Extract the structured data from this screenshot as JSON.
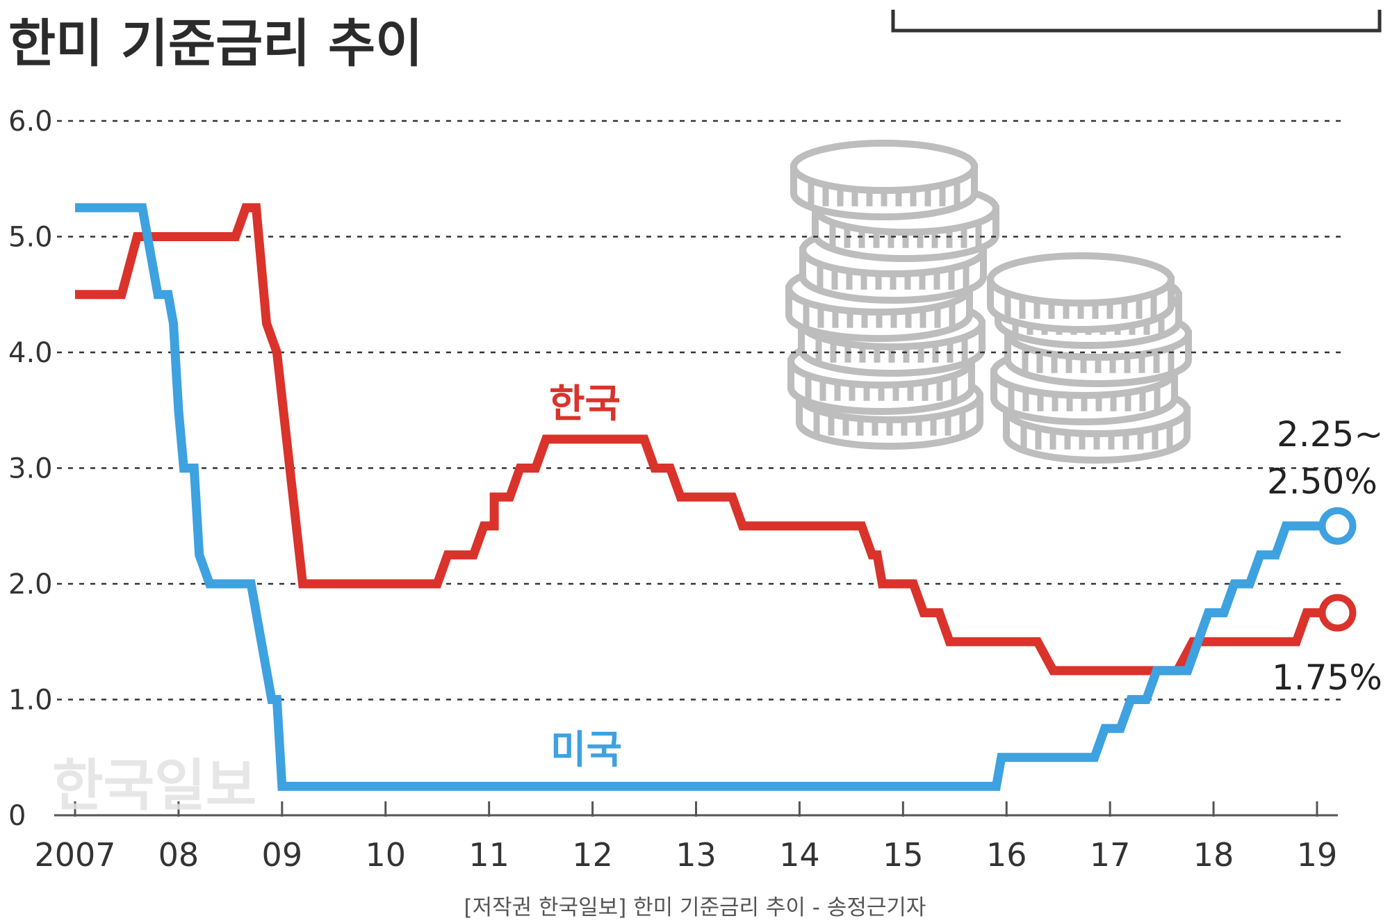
{
  "chart_data": {
    "type": "line",
    "title": "한미 기준금리 추이",
    "source": "[저작권 한국일보] 한미 기준금리 추이 - 송정근기자",
    "watermark": "한국일보",
    "x_tick_labels": [
      "2007",
      "08",
      "09",
      "10",
      "11",
      "12",
      "13",
      "14",
      "15",
      "16",
      "17",
      "18",
      "19"
    ],
    "y_tick_labels": [
      "0",
      "1.0",
      "2.0",
      "3.0",
      "4.0",
      "5.0",
      "6.0"
    ],
    "ylim": [
      0,
      6
    ],
    "xlim": [
      2007,
      2019
    ],
    "grid": true,
    "colors": {
      "korea": "#d9332b",
      "usa": "#3ea1e0",
      "coins": "#bdbdbd"
    },
    "series": [
      {
        "name": "한국",
        "key": "korea",
        "points": [
          [
            2007.0,
            4.5
          ],
          [
            2007.45,
            4.5
          ],
          [
            2007.6,
            5.0
          ],
          [
            2008.55,
            5.0
          ],
          [
            2008.65,
            5.25
          ],
          [
            2008.75,
            5.25
          ],
          [
            2008.85,
            4.25
          ],
          [
            2008.95,
            4.0
          ],
          [
            2009.2,
            2.0
          ],
          [
            2010.5,
            2.0
          ],
          [
            2010.6,
            2.25
          ],
          [
            2010.85,
            2.25
          ],
          [
            2010.95,
            2.5
          ],
          [
            2011.05,
            2.5
          ],
          [
            2011.05,
            2.75
          ],
          [
            2011.2,
            2.75
          ],
          [
            2011.3,
            3.0
          ],
          [
            2011.45,
            3.0
          ],
          [
            2011.55,
            3.25
          ],
          [
            2012.5,
            3.25
          ],
          [
            2012.6,
            3.0
          ],
          [
            2012.75,
            3.0
          ],
          [
            2012.85,
            2.75
          ],
          [
            2013.35,
            2.75
          ],
          [
            2013.45,
            2.5
          ],
          [
            2014.6,
            2.5
          ],
          [
            2014.7,
            2.25
          ],
          [
            2014.75,
            2.25
          ],
          [
            2014.8,
            2.0
          ],
          [
            2015.1,
            2.0
          ],
          [
            2015.2,
            1.75
          ],
          [
            2015.35,
            1.75
          ],
          [
            2015.45,
            1.5
          ],
          [
            2016.3,
            1.5
          ],
          [
            2016.45,
            1.25
          ],
          [
            2017.65,
            1.25
          ],
          [
            2017.8,
            1.5
          ],
          [
            2018.8,
            1.5
          ],
          [
            2018.9,
            1.75
          ],
          [
            2019.05,
            1.75
          ]
        ],
        "end_label": "1.75%"
      },
      {
        "name": "미국",
        "key": "usa",
        "points": [
          [
            2007.0,
            5.25
          ],
          [
            2007.65,
            5.25
          ],
          [
            2007.75,
            4.75
          ],
          [
            2007.8,
            4.5
          ],
          [
            2007.9,
            4.5
          ],
          [
            2007.95,
            4.25
          ],
          [
            2008.0,
            3.5
          ],
          [
            2008.05,
            3.0
          ],
          [
            2008.15,
            3.0
          ],
          [
            2008.2,
            2.25
          ],
          [
            2008.3,
            2.0
          ],
          [
            2008.7,
            2.0
          ],
          [
            2008.8,
            1.5
          ],
          [
            2008.9,
            1.0
          ],
          [
            2008.95,
            1.0
          ],
          [
            2009.0,
            0.25
          ],
          [
            2015.9,
            0.25
          ],
          [
            2015.95,
            0.5
          ],
          [
            2016.85,
            0.5
          ],
          [
            2016.95,
            0.75
          ],
          [
            2017.1,
            0.75
          ],
          [
            2017.2,
            1.0
          ],
          [
            2017.35,
            1.0
          ],
          [
            2017.45,
            1.25
          ],
          [
            2017.75,
            1.25
          ],
          [
            2017.85,
            1.5
          ],
          [
            2017.95,
            1.75
          ],
          [
            2018.1,
            1.75
          ],
          [
            2018.2,
            2.0
          ],
          [
            2018.35,
            2.0
          ],
          [
            2018.45,
            2.25
          ],
          [
            2018.6,
            2.25
          ],
          [
            2018.7,
            2.5
          ],
          [
            2019.05,
            2.5
          ]
        ],
        "end_label_line1": "2.25~",
        "end_label_line2": "2.50%"
      }
    ]
  }
}
